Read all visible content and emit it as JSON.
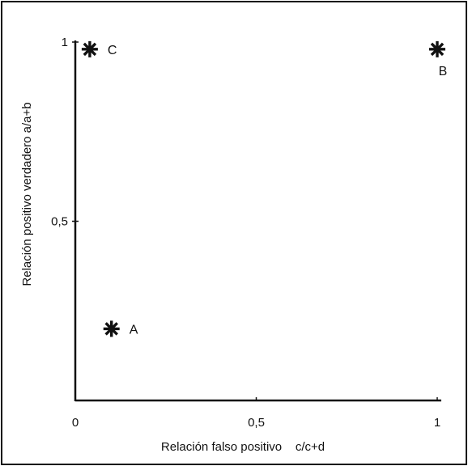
{
  "chart_data": {
    "type": "scatter",
    "title": "",
    "xlabel": "Relación falso positivo    c/c+d",
    "ylabel": "Relación positivo verdadero a/a+b",
    "xlim": [
      0,
      1
    ],
    "ylim": [
      0,
      1
    ],
    "x_ticks": [
      {
        "value": 0,
        "label": "0"
      },
      {
        "value": 0.5,
        "label": "0,5"
      },
      {
        "value": 1,
        "label": "1"
      }
    ],
    "y_ticks": [
      {
        "value": 0.5,
        "label": "0,5"
      },
      {
        "value": 1,
        "label": "1"
      }
    ],
    "grid": false,
    "legend": "none",
    "marker": "asterisk",
    "points": [
      {
        "label": "A",
        "x": 0.1,
        "y": 0.2,
        "label_position": "right"
      },
      {
        "label": "B",
        "x": 1.0,
        "y": 0.98,
        "label_position": "below"
      },
      {
        "label": "C",
        "x": 0.04,
        "y": 0.98,
        "label_position": "right"
      }
    ],
    "colors": {
      "ink": "#111111",
      "background": "#ffffff"
    }
  }
}
